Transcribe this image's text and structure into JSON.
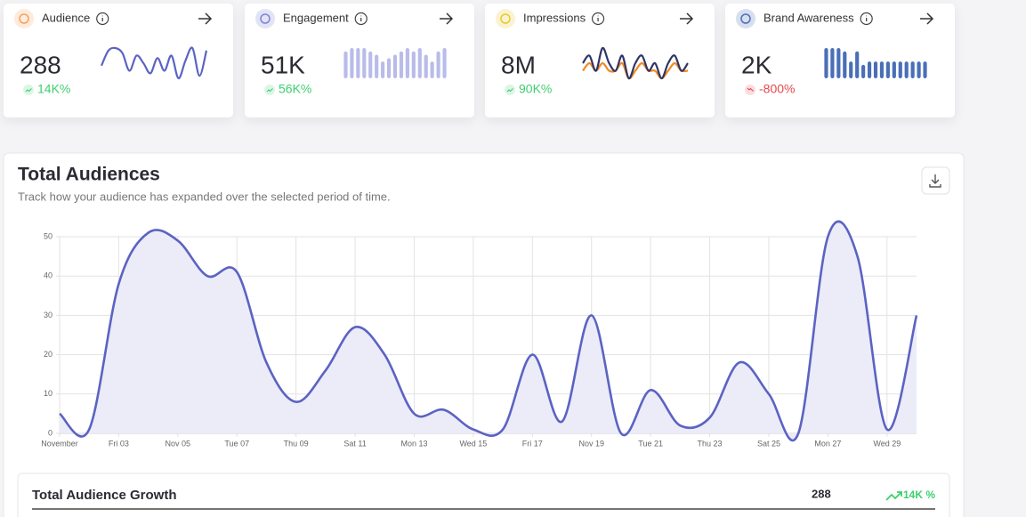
{
  "cards": [
    {
      "title": "Audience",
      "value": "288",
      "change": "14K%",
      "trend": "up",
      "icon_color": "#f4a261",
      "sparkline": {
        "type": "line",
        "series": [
          {
            "color": "#5b63c2",
            "values": [
              8,
              14,
              15,
              13,
              6,
              12,
              9,
              5,
              11,
              6,
              12,
              3,
              10,
              15,
              4,
              14
            ]
          }
        ]
      }
    },
    {
      "title": "Engagement",
      "value": "51K",
      "change": "56K%",
      "trend": "up",
      "icon_color": "#7c83d6",
      "sparkline": {
        "type": "bars",
        "series": [
          {
            "color": "#b9bce9",
            "values": [
              8,
              9,
              9,
              9,
              8,
              7,
              5,
              6,
              7,
              8,
              9,
              8,
              9,
              7,
              5,
              8,
              9
            ]
          }
        ]
      }
    },
    {
      "title": "Impressions",
      "value": "8M",
      "change": "90K%",
      "trend": "up",
      "icon_color": "#e9c92d",
      "sparkline": {
        "type": "line",
        "series": [
          {
            "color": "#f08a24",
            "values": [
              4,
              5,
              4,
              5,
              4,
              4,
              5,
              3,
              4,
              5,
              4,
              4,
              3,
              4,
              5,
              4,
              4
            ]
          },
          {
            "color": "#2f3566",
            "values": [
              5,
              6,
              4,
              7,
              5,
              4,
              6,
              3,
              5,
              6,
              4,
              5,
              3,
              5,
              6,
              4,
              5
            ]
          }
        ]
      }
    },
    {
      "title": "Brand Awareness",
      "value": "2K",
      "change": "-800%",
      "trend": "down",
      "icon_color": "#4a6fb8",
      "sparkline": {
        "type": "bars",
        "series": [
          {
            "color": "#4a6fb8",
            "values": [
              9,
              9,
              9,
              8,
              5,
              8,
              4,
              5,
              5,
              5,
              5,
              5,
              5,
              5,
              5,
              5,
              5
            ]
          }
        ]
      }
    }
  ],
  "section": {
    "title": "Total Audiences",
    "subtitle": "Track how your audience has expanded over the selected period of time."
  },
  "chart_data": {
    "type": "area",
    "categories": [
      "November",
      null,
      "Fri 03",
      null,
      "Nov 05",
      null,
      "Tue 07",
      null,
      "Thu 09",
      null,
      "Sat 11",
      null,
      "Mon 13",
      null,
      "Wed 15",
      null,
      "Fri 17",
      null,
      "Nov 19",
      null,
      "Tue 21",
      null,
      "Thu 23",
      null,
      "Sat 25",
      null,
      "Mon 27",
      null,
      "Wed 29",
      null
    ],
    "values": [
      5,
      1,
      38,
      51,
      49,
      40,
      41,
      18,
      8,
      16,
      27,
      20,
      5,
      6,
      1,
      1,
      20,
      3,
      30,
      0,
      11,
      2,
      4,
      18,
      10,
      0,
      50,
      45,
      1,
      30
    ],
    "color": "#5b63c2",
    "fill": "#ecebf8",
    "ylim": [
      0,
      50
    ],
    "yticks": [
      0,
      10,
      20,
      30,
      40,
      50
    ],
    "grid": true
  },
  "footer": {
    "label": "Total Audience Growth",
    "value": "288",
    "change": "14K %"
  }
}
